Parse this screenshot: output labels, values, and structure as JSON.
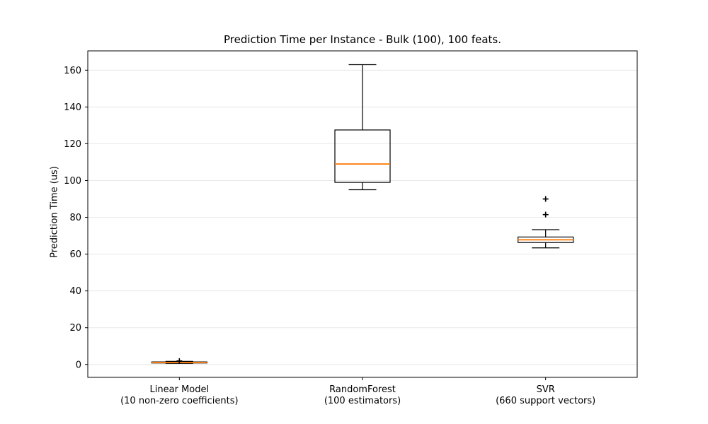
{
  "title": "Prediction Time per Instance - Bulk (100), 100 feats.",
  "chart_data": {
    "type": "boxplot",
    "title": "Prediction Time per Instance - Bulk (100), 100 feats.",
    "xlabel": "",
    "ylabel": "Prediction Time (us)",
    "ylim": [
      -7,
      170.5
    ],
    "yticks": [
      0,
      20,
      40,
      60,
      80,
      100,
      120,
      140,
      160
    ],
    "grid": "horizontal-only",
    "legend": "none",
    "categories": [
      [
        "Linear Model",
        "(10 non-zero coefficients)"
      ],
      [
        "RandomForest",
        "(100 estimators)"
      ],
      [
        "SVR",
        "(660 support vectors)"
      ]
    ],
    "series": [
      {
        "name": "Linear Model (10 non-zero coefficients)",
        "whisker_low": 0.6,
        "q1": 0.8,
        "median": 1.1,
        "q3": 1.4,
        "whisker_high": 1.7,
        "outliers": [
          1.9
        ]
      },
      {
        "name": "RandomForest (100 estimators)",
        "whisker_low": 95,
        "q1": 99,
        "median": 109,
        "q3": 127.5,
        "whisker_high": 163,
        "outliers": []
      },
      {
        "name": "SVR (660 support vectors)",
        "whisker_low": 63.4,
        "q1": 66.3,
        "median": 67.8,
        "q3": 69.3,
        "whisker_high": 73.3,
        "outliers": [
          81.5,
          90
        ]
      }
    ],
    "colors": {
      "median": "#ff7f0e",
      "box_line": "#000000",
      "whisker": "#000000",
      "flier": "#000000",
      "grid": "#e8e8e8",
      "frame": "#000000",
      "background": "#ffffff"
    },
    "flier_marker": "plus"
  }
}
